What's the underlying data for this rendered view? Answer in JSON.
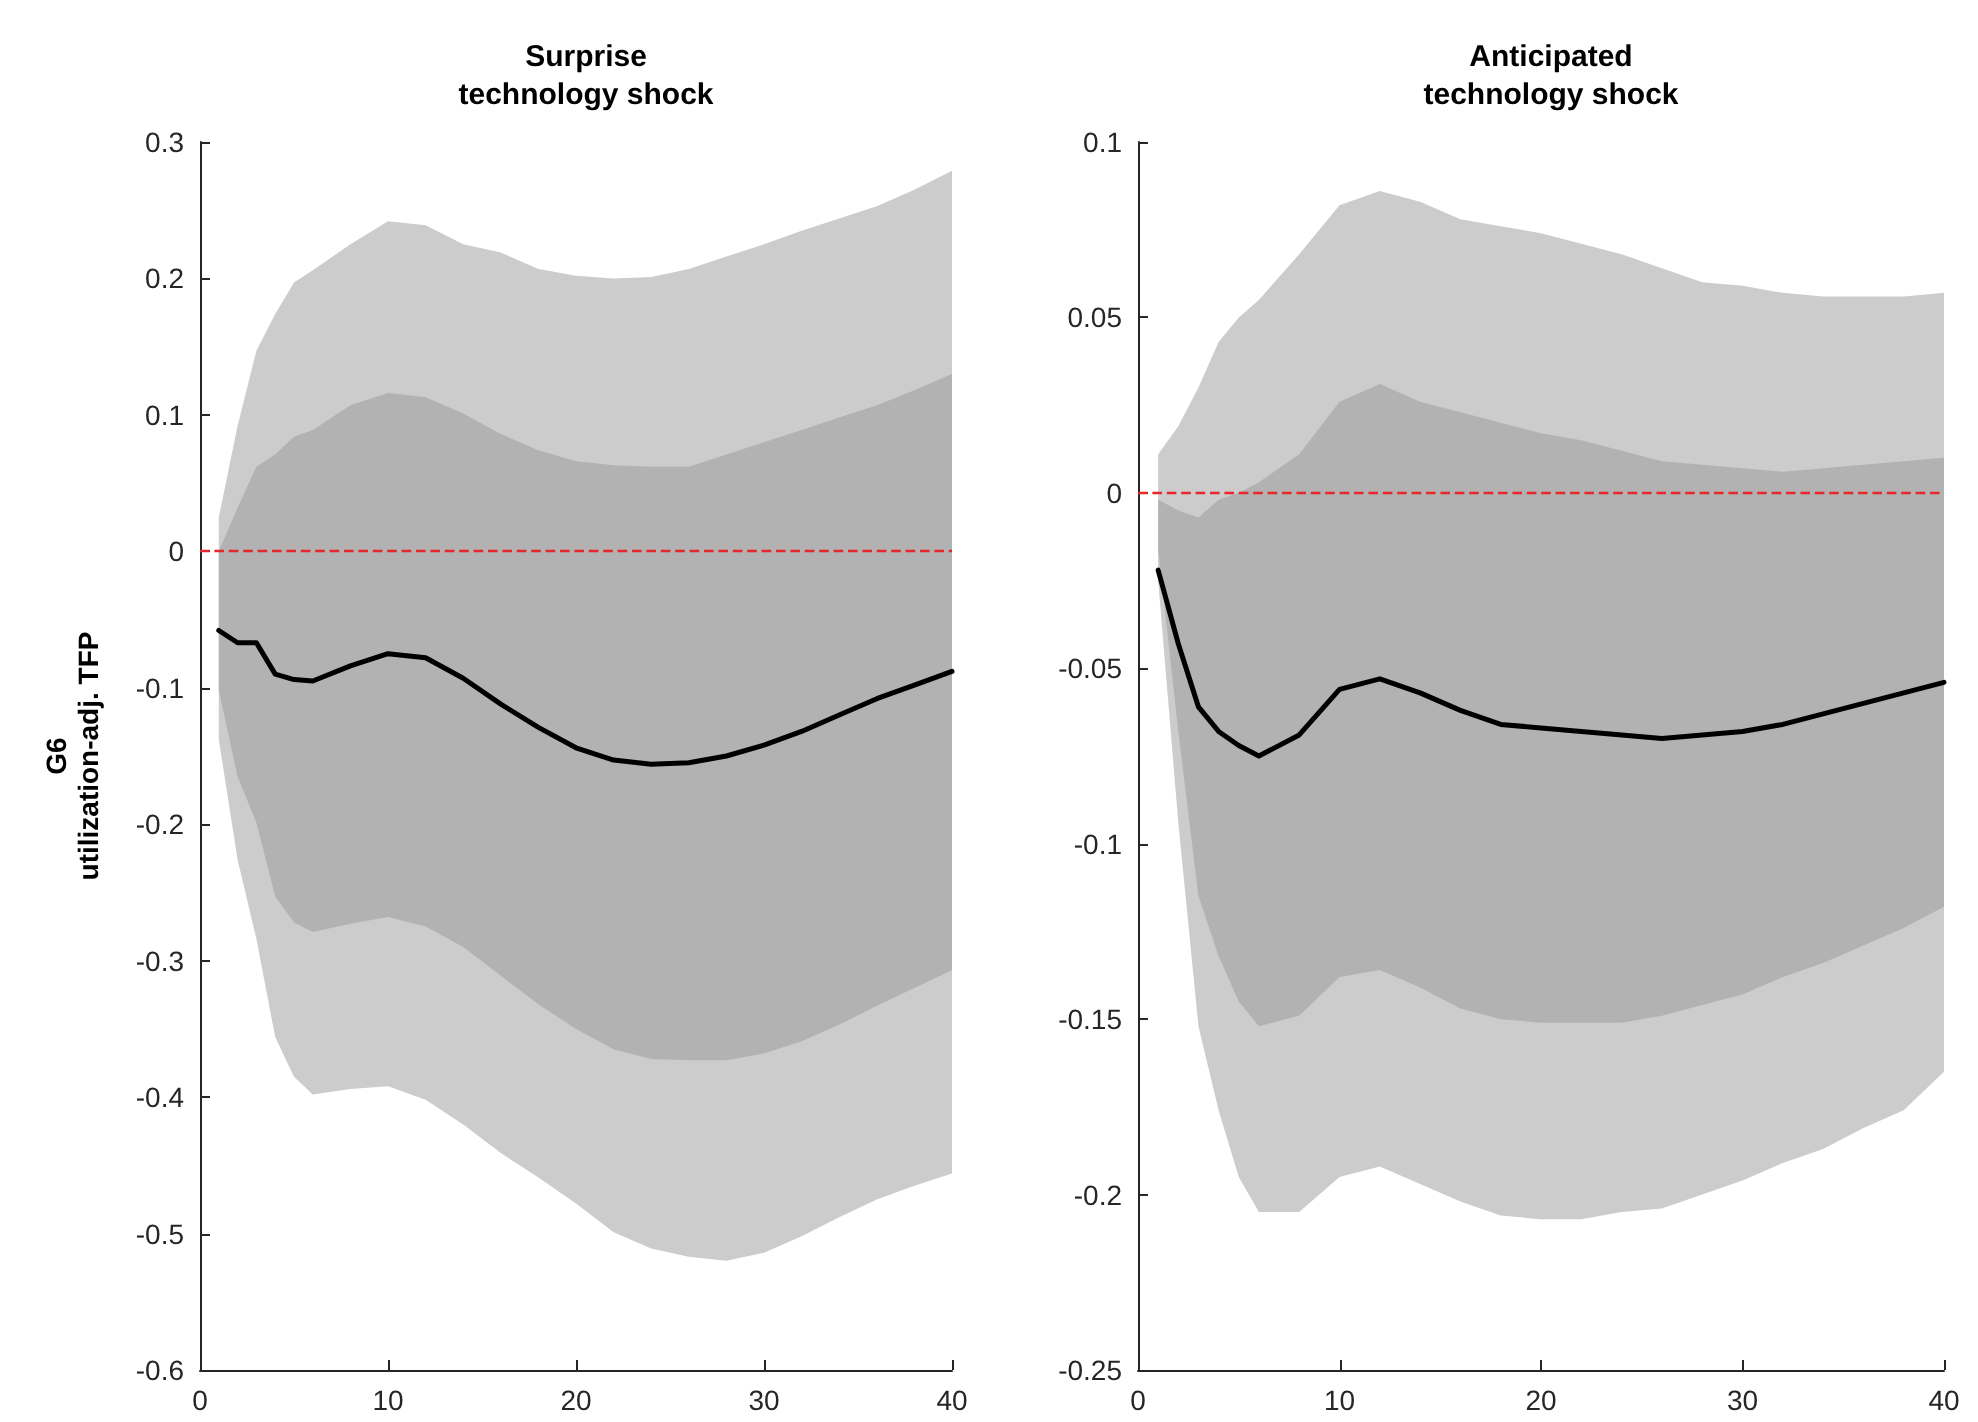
{
  "chart_data": [
    {
      "type": "line",
      "title": "Surprise\ntechnology shock",
      "ylabel": "G6\nutilization-adj. TFP",
      "x": [
        1,
        2,
        3,
        4,
        5,
        6,
        8,
        10,
        12,
        14,
        16,
        18,
        20,
        22,
        24,
        26,
        28,
        30,
        32,
        34,
        36,
        38,
        40
      ],
      "xlim": [
        0,
        40
      ],
      "xticks": [
        0,
        10,
        20,
        30,
        40
      ],
      "ylim": [
        -0.6,
        0.3
      ],
      "yticks": [
        -0.6,
        -0.5,
        -0.4,
        -0.3,
        -0.2,
        -0.1,
        0,
        0.1,
        0.2,
        0.3
      ],
      "grid": false,
      "legend": false,
      "marker": "none",
      "line_style": "solid",
      "ref_lines": [
        {
          "axis": "y",
          "value": 0,
          "color": "#e8272a",
          "line_style": "dashed"
        }
      ],
      "series": [
        {
          "color": "#cccccc",
          "values": [
            null,
            null,
            null,
            null,
            null,
            null,
            null,
            null,
            null,
            null,
            null,
            null,
            null,
            null,
            null,
            null,
            null,
            null,
            null,
            null,
            null,
            null,
            null
          ],
          "lower": [
            -0.138,
            -0.226,
            -0.284,
            -0.356,
            -0.385,
            -0.398,
            -0.394,
            -0.392,
            -0.402,
            -0.42,
            -0.441,
            -0.459,
            -0.478,
            -0.499,
            -0.511,
            -0.517,
            -0.52,
            -0.514,
            -0.502,
            -0.488,
            -0.475,
            -0.465,
            -0.456
          ],
          "upper": [
            0.025,
            0.092,
            0.147,
            0.174,
            0.197,
            0.206,
            0.225,
            0.242,
            0.239,
            0.225,
            0.219,
            0.207,
            0.202,
            0.2,
            0.201,
            0.207,
            0.216,
            0.225,
            0.235,
            0.244,
            0.253,
            0.265,
            0.279
          ]
        },
        {
          "color": "#b2b2b2",
          "values": [
            null,
            null,
            null,
            null,
            null,
            null,
            null,
            null,
            null,
            null,
            null,
            null,
            null,
            null,
            null,
            null,
            null,
            null,
            null,
            null,
            null,
            null,
            null
          ],
          "lower": [
            -0.102,
            -0.165,
            -0.199,
            -0.253,
            -0.272,
            -0.279,
            -0.273,
            -0.268,
            -0.275,
            -0.29,
            -0.311,
            -0.332,
            -0.35,
            -0.365,
            -0.372,
            -0.373,
            -0.373,
            -0.368,
            -0.359,
            -0.347,
            -0.333,
            -0.32,
            -0.307
          ],
          "upper": [
            0,
            0.032,
            0.062,
            0.071,
            0.084,
            0.089,
            0.107,
            0.116,
            0.113,
            0.101,
            0.086,
            0.074,
            0.066,
            0.063,
            0.062,
            0.062,
            0.071,
            0.08,
            0.089,
            0.098,
            0.107,
            0.118,
            0.13
          ]
        },
        {
          "color": "#000000",
          "values": [
            -0.058,
            -0.067,
            -0.067,
            -0.09,
            -0.094,
            -0.095,
            -0.084,
            -0.075,
            -0.078,
            -0.093,
            -0.112,
            -0.129,
            -0.144,
            -0.153,
            -0.156,
            -0.155,
            -0.15,
            -0.142,
            -0.132,
            -0.12,
            -0.108,
            -0.098,
            -0.088
          ]
        }
      ]
    },
    {
      "type": "line",
      "title": "Anticipated\ntechnology shock",
      "x": [
        1,
        2,
        3,
        4,
        5,
        6,
        8,
        10,
        12,
        14,
        16,
        18,
        20,
        22,
        24,
        26,
        28,
        30,
        32,
        34,
        36,
        38,
        40
      ],
      "xlim": [
        0,
        40
      ],
      "xticks": [
        0,
        10,
        20,
        30,
        40
      ],
      "ylim": [
        -0.25,
        0.1
      ],
      "yticks": [
        -0.25,
        -0.2,
        -0.15,
        -0.1,
        -0.05,
        0,
        0.05,
        0.1
      ],
      "grid": false,
      "legend": false,
      "marker": "none",
      "line_style": "solid",
      "ref_lines": [
        {
          "axis": "y",
          "value": 0,
          "color": "#e8272a",
          "line_style": "dashed"
        }
      ],
      "series": [
        {
          "color": "#cccccc",
          "values": [
            null,
            null,
            null,
            null,
            null,
            null,
            null,
            null,
            null,
            null,
            null,
            null,
            null,
            null,
            null,
            null,
            null,
            null,
            null,
            null,
            null,
            null,
            null
          ],
          "lower": [
            -0.025,
            -0.094,
            -0.152,
            -0.176,
            -0.195,
            -0.205,
            -0.205,
            -0.195,
            -0.192,
            -0.197,
            -0.202,
            -0.206,
            -0.207,
            -0.207,
            -0.205,
            -0.204,
            -0.2,
            -0.196,
            -0.191,
            -0.187,
            -0.181,
            -0.176,
            -0.165
          ],
          "upper": [
            0.011,
            0.019,
            0.03,
            0.043,
            0.05,
            0.055,
            0.068,
            0.082,
            0.086,
            0.083,
            0.078,
            0.076,
            0.074,
            0.071,
            0.068,
            0.064,
            0.06,
            0.059,
            0.057,
            0.056,
            0.056,
            0.056,
            0.057
          ]
        },
        {
          "color": "#b2b2b2",
          "values": [
            null,
            null,
            null,
            null,
            null,
            null,
            null,
            null,
            null,
            null,
            null,
            null,
            null,
            null,
            null,
            null,
            null,
            null,
            null,
            null,
            null,
            null,
            null
          ],
          "lower": [
            -0.016,
            -0.068,
            -0.115,
            -0.132,
            -0.145,
            -0.152,
            -0.149,
            -0.138,
            -0.136,
            -0.141,
            -0.147,
            -0.15,
            -0.151,
            -0.151,
            -0.151,
            -0.149,
            -0.146,
            -0.143,
            -0.138,
            -0.134,
            -0.129,
            -0.124,
            -0.118
          ],
          "upper": [
            -0.002,
            -0.005,
            -0.007,
            -0.002,
            0,
            0.003,
            0.011,
            0.026,
            0.031,
            0.026,
            0.023,
            0.02,
            0.017,
            0.015,
            0.012,
            0.009,
            0.008,
            0.007,
            0.006,
            0.007,
            0.008,
            0.009,
            0.01
          ]
        },
        {
          "color": "#000000",
          "values": [
            -0.022,
            -0.043,
            -0.061,
            -0.068,
            -0.072,
            -0.075,
            -0.069,
            -0.056,
            -0.053,
            -0.057,
            -0.062,
            -0.066,
            -0.067,
            -0.068,
            -0.069,
            -0.07,
            -0.069,
            -0.068,
            -0.066,
            -0.063,
            -0.06,
            -0.057,
            -0.054
          ]
        }
      ]
    }
  ]
}
